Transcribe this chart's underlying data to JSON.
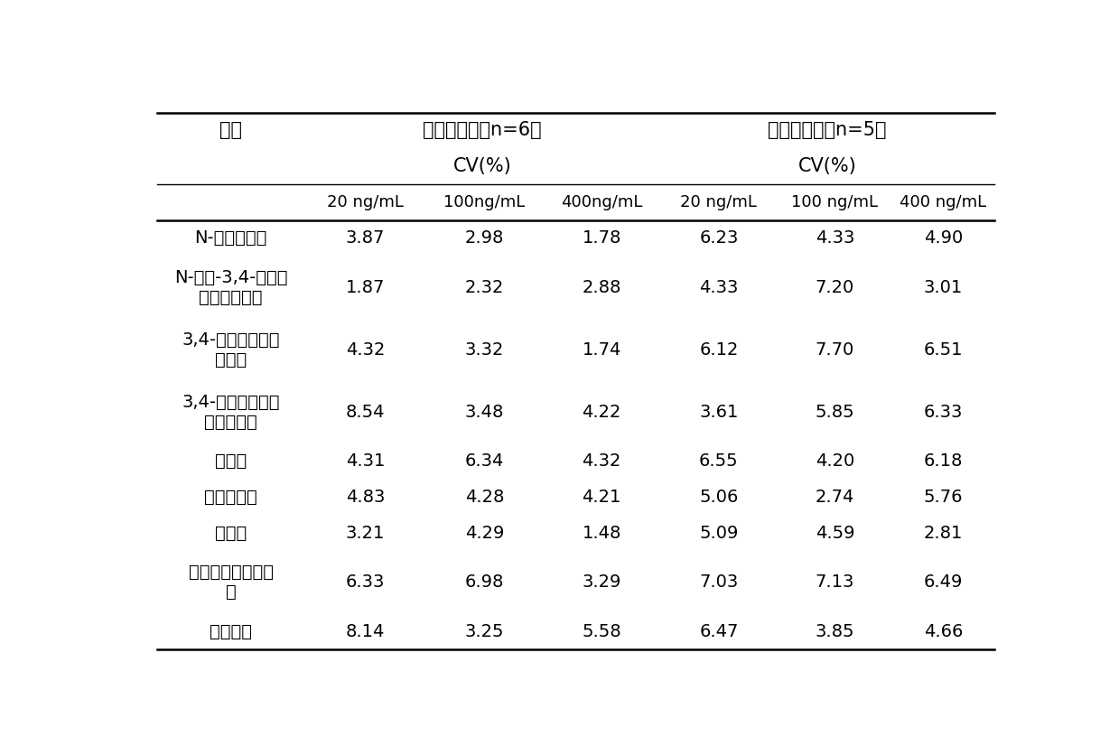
{
  "col_header_row1_left": "项目",
  "col_header_row1_mid": "日内精密度（n=6）",
  "col_header_row1_right": "日间精密度（n=5）",
  "col_header_row2_mid": "CV(%)",
  "col_header_row2_right": "CV(%)",
  "col_header_row3": [
    "20 ng/mL",
    "100ng/mL",
    "400ng/mL",
    "20 ng/mL",
    "100 ng/mL",
    "400 ng/mL"
  ],
  "rows": [
    [
      "N-异丙基苄胺",
      "3.87",
      "2.98",
      "1.78",
      "6.23",
      "4.33",
      "4.90"
    ],
    [
      "N-乙基-3,4-亚甲基\n二氧基苯丙胺",
      "1.87",
      "2.32",
      "2.88",
      "4.33",
      "7.20",
      "3.01"
    ],
    [
      "3,4-亚甲基二氧基\n苯丙胺",
      "4.32",
      "3.32",
      "1.74",
      "6.12",
      "7.70",
      "6.51"
    ],
    [
      "3,4-亚甲基二氧基\n甲基苯丙胺",
      "8.54",
      "3.48",
      "4.22",
      "3.61",
      "5.85",
      "6.33"
    ],
    [
      "苯丙胺",
      "4.31",
      "6.34",
      "4.32",
      "6.55",
      "4.20",
      "6.18"
    ],
    [
      "甲基苯丙胺",
      "4.83",
      "4.28",
      "4.21",
      "5.06",
      "2.74",
      "5.76"
    ],
    [
      "麻黄碱",
      "3.21",
      "4.29",
      "1.48",
      "5.09",
      "4.59",
      "2.81"
    ],
    [
      "对甲氧基甲基苯丙\n胺",
      "6.33",
      "6.98",
      "3.29",
      "7.03",
      "7.13",
      "6.49"
    ],
    [
      "司来吉兰",
      "8.14",
      "3.25",
      "5.58",
      "6.47",
      "3.85",
      "4.66"
    ]
  ],
  "row_double": [
    false,
    true,
    true,
    true,
    false,
    false,
    false,
    true,
    false
  ],
  "bg_color": "#ffffff",
  "text_color": "#000000",
  "font_size_header": 15,
  "font_size_data": 14,
  "font_size_conc": 13
}
